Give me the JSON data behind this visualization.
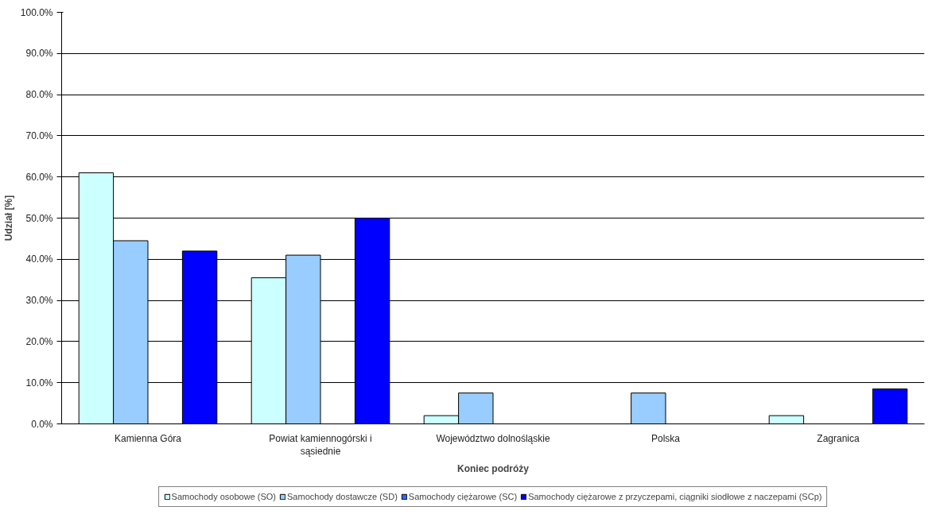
{
  "chart_data": {
    "type": "bar",
    "xlabel": "Koniec podróży",
    "ylabel": "Udział [%]",
    "categories": [
      "Kamienna Góra",
      "Powiat kamiennogórski i sąsiednie",
      "Województwo dolnośląskie",
      "Polska",
      "Zagranica"
    ],
    "series": [
      {
        "name": "Samochody osobowe (SO)",
        "color": "#ccffff",
        "values": [
          61,
          35.5,
          2,
          0,
          2
        ]
      },
      {
        "name": "Samochody dostawcze (SD)",
        "color": "#99ccff",
        "values": [
          44.5,
          41,
          7.5,
          7.5,
          0
        ]
      },
      {
        "name": "Samochody ciężarowe (SC)",
        "color": "#3366ff",
        "values": [
          0,
          0,
          0,
          0,
          0
        ]
      },
      {
        "name": "Samochody ciężarowe z przyczepami, ciągniki siodłowe z naczepami (SCp)",
        "color": "#0000ff",
        "values": [
          42,
          50,
          0,
          0,
          8.5
        ]
      }
    ],
    "ylim": [
      0,
      100
    ],
    "yticks": [
      {
        "value": 0,
        "label": "0.0%"
      },
      {
        "value": 10,
        "label": "10.0%"
      },
      {
        "value": 20,
        "label": "20.0%"
      },
      {
        "value": 30,
        "label": "30.0%"
      },
      {
        "value": 40,
        "label": "40.0%"
      },
      {
        "value": 50,
        "label": "50.0%"
      },
      {
        "value": 60,
        "label": "60.0%"
      },
      {
        "value": 70,
        "label": "70.0%"
      },
      {
        "value": 80,
        "label": "80.0%"
      },
      {
        "value": 90,
        "label": "90.0%"
      },
      {
        "value": 100,
        "label": "100.0%"
      }
    ],
    "grid": "y",
    "legend": "bottom"
  }
}
